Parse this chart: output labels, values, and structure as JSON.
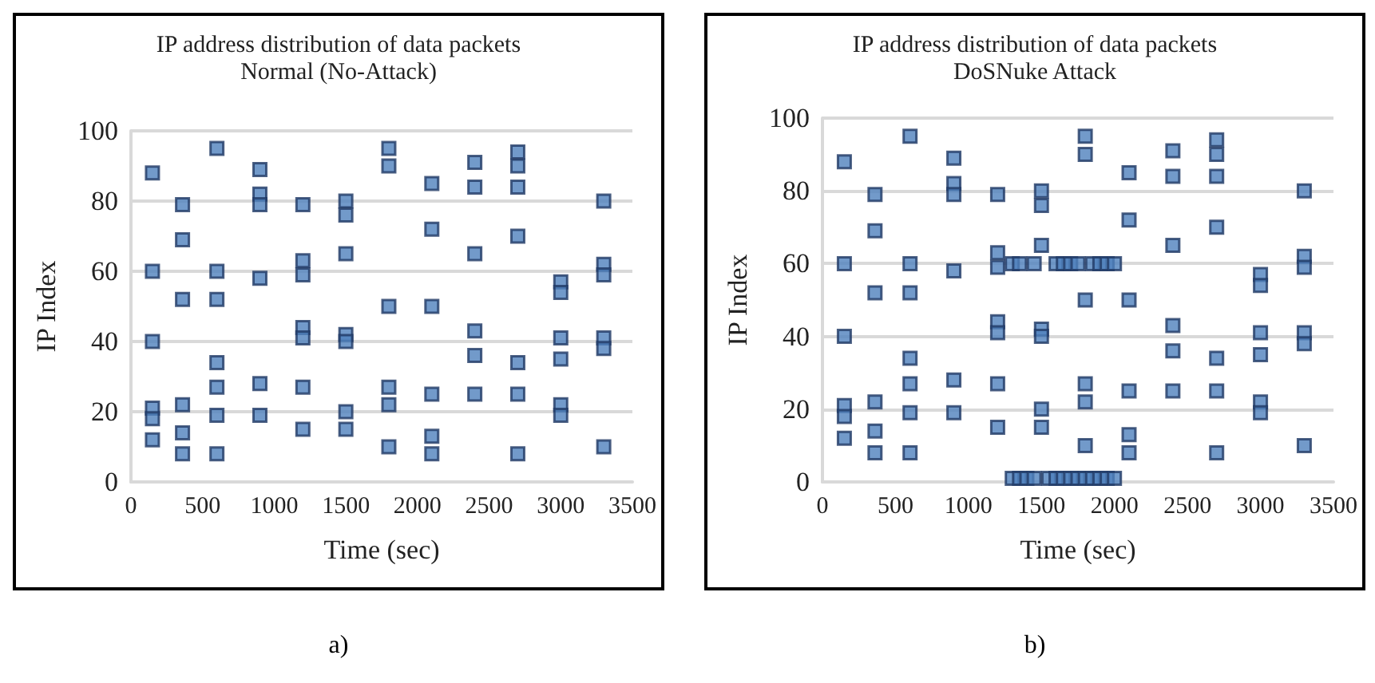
{
  "chart_data": [
    {
      "type": "scatter",
      "title": "IP address distribution of data packets",
      "subtitle": "Normal (No-Attack)",
      "xlabel": "Time (sec)",
      "ylabel": "IP Index",
      "annotations": [
        "a)"
      ],
      "xlim": [
        0,
        3500
      ],
      "xticks": [
        0,
        500,
        1000,
        1500,
        2000,
        2500,
        3000,
        3500
      ],
      "ylim": [
        0,
        100
      ],
      "yticks": [
        0,
        20,
        40,
        60,
        80,
        100
      ],
      "grid": "y",
      "marker": "square",
      "series": [
        {
          "color": "#4f81bd",
          "x": [
            150,
            150,
            150,
            150,
            150,
            150,
            360,
            360,
            360,
            360,
            360,
            360,
            600,
            600,
            600,
            600,
            600,
            600,
            600,
            900,
            900,
            900,
            900,
            900,
            900,
            1200,
            1200,
            1200,
            1200,
            1200,
            1200,
            1200,
            1500,
            1500,
            1500,
            1500,
            1500,
            1500,
            1500,
            1800,
            1800,
            1800,
            1800,
            1800,
            1800,
            2100,
            2100,
            2100,
            2100,
            2100,
            2100,
            2400,
            2400,
            2400,
            2400,
            2400,
            2400,
            2700,
            2700,
            2700,
            2700,
            2700,
            2700,
            2700,
            3000,
            3000,
            3000,
            3000,
            3000,
            3000,
            3300,
            3300,
            3300,
            3300,
            3300,
            3300
          ],
          "values": [
            88,
            60,
            40,
            21,
            18,
            12,
            79,
            69,
            52,
            22,
            14,
            8,
            95,
            60,
            52,
            34,
            27,
            19,
            8,
            89,
            82,
            79,
            58,
            28,
            19,
            79,
            63,
            59,
            44,
            41,
            27,
            15,
            80,
            76,
            65,
            42,
            40,
            20,
            15,
            95,
            90,
            50,
            27,
            22,
            10,
            85,
            72,
            50,
            25,
            13,
            8,
            91,
            84,
            65,
            43,
            36,
            25,
            94,
            90,
            84,
            70,
            34,
            25,
            8,
            57,
            54,
            41,
            35,
            22,
            19,
            80,
            62,
            59,
            41,
            38,
            10
          ]
        }
      ]
    },
    {
      "type": "scatter",
      "title": "IP address distribution of data packets",
      "subtitle": "DoSNuke Attack",
      "xlabel": "Time (sec)",
      "ylabel": "IP Index",
      "annotations": [
        "b)"
      ],
      "xlim": [
        0,
        3500
      ],
      "xticks": [
        0,
        500,
        1000,
        1500,
        2000,
        2500,
        3000,
        3500
      ],
      "ylim": [
        0,
        100
      ],
      "yticks": [
        0,
        20,
        40,
        60,
        80,
        100
      ],
      "grid": "y",
      "marker": "square",
      "series": [
        {
          "color": "#4f81bd",
          "x": [
            150,
            150,
            150,
            150,
            150,
            150,
            360,
            360,
            360,
            360,
            360,
            360,
            600,
            600,
            600,
            600,
            600,
            600,
            600,
            900,
            900,
            900,
            900,
            900,
            900,
            1200,
            1200,
            1200,
            1200,
            1200,
            1200,
            1200,
            1500,
            1500,
            1500,
            1500,
            1500,
            1500,
            1500,
            1800,
            1800,
            1800,
            1800,
            1800,
            1800,
            2100,
            2100,
            2100,
            2100,
            2100,
            2100,
            2400,
            2400,
            2400,
            2400,
            2400,
            2400,
            2700,
            2700,
            2700,
            2700,
            2700,
            2700,
            2700,
            3000,
            3000,
            3000,
            3000,
            3000,
            3000,
            3300,
            3300,
            3300,
            3300,
            3300,
            3300,
            1300,
            1350,
            1450,
            1600,
            1650,
            1700,
            1750,
            1850,
            1900,
            1950,
            2000,
            1300,
            1350,
            1400,
            1450,
            1550,
            1600,
            1650,
            1700,
            1750,
            1800,
            1850,
            1900,
            1950,
            2000
          ],
          "values": [
            88,
            60,
            40,
            21,
            18,
            12,
            79,
            69,
            52,
            22,
            14,
            8,
            95,
            60,
            52,
            34,
            27,
            19,
            8,
            89,
            82,
            79,
            58,
            28,
            19,
            79,
            63,
            59,
            44,
            41,
            27,
            15,
            80,
            76,
            65,
            42,
            40,
            20,
            15,
            95,
            90,
            50,
            27,
            22,
            10,
            85,
            72,
            50,
            25,
            13,
            8,
            91,
            84,
            65,
            43,
            36,
            25,
            94,
            90,
            84,
            70,
            34,
            25,
            8,
            57,
            54,
            41,
            35,
            22,
            19,
            80,
            62,
            59,
            41,
            38,
            10,
            60,
            60,
            60,
            60,
            60,
            60,
            60,
            60,
            60,
            60,
            60,
            1,
            1,
            1,
            1,
            1,
            1,
            1,
            1,
            1,
            1,
            1,
            1,
            1,
            1
          ]
        }
      ]
    }
  ]
}
